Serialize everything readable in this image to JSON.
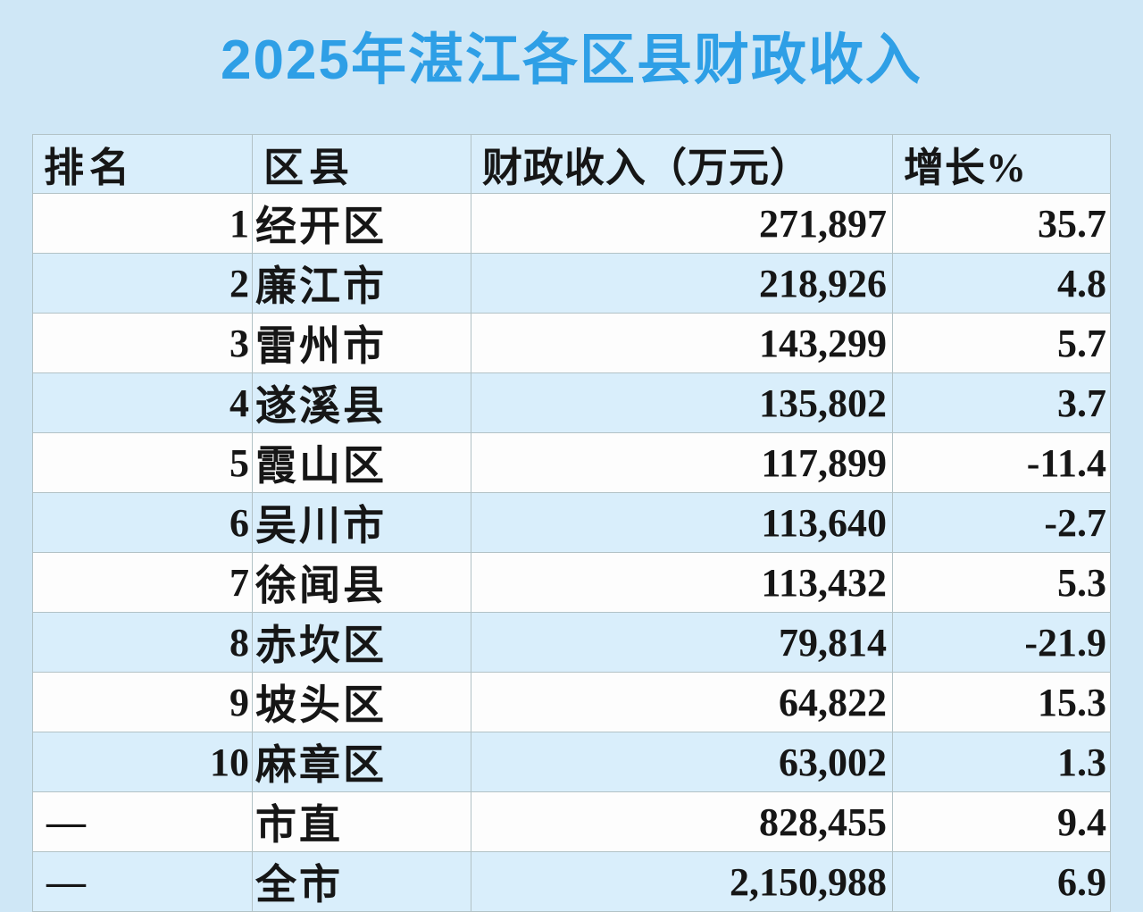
{
  "title": "2025年湛江各区县财政收入",
  "chart_data": {
    "type": "table",
    "title": "2025年湛江各区县财政收入",
    "columns": [
      "排名",
      "区县",
      "财政收入（万元）",
      "增长%"
    ],
    "rows": [
      {
        "rank": "1",
        "district": "经开区",
        "revenue": 271897,
        "revenue_label": "271,897",
        "growth": 35.7,
        "growth_label": "35.7"
      },
      {
        "rank": "2",
        "district": "廉江市",
        "revenue": 218926,
        "revenue_label": "218,926",
        "growth": 4.8,
        "growth_label": "4.8"
      },
      {
        "rank": "3",
        "district": "雷州市",
        "revenue": 143299,
        "revenue_label": "143,299",
        "growth": 5.7,
        "growth_label": "5.7"
      },
      {
        "rank": "4",
        "district": "遂溪县",
        "revenue": 135802,
        "revenue_label": "135,802",
        "growth": 3.7,
        "growth_label": "3.7"
      },
      {
        "rank": "5",
        "district": "霞山区",
        "revenue": 117899,
        "revenue_label": "117,899",
        "growth": -11.4,
        "growth_label": "-11.4"
      },
      {
        "rank": "6",
        "district": "吴川市",
        "revenue": 113640,
        "revenue_label": "113,640",
        "growth": -2.7,
        "growth_label": "-2.7"
      },
      {
        "rank": "7",
        "district": "徐闻县",
        "revenue": 113432,
        "revenue_label": "113,432",
        "growth": 5.3,
        "growth_label": "5.3"
      },
      {
        "rank": "8",
        "district": "赤坎区",
        "revenue": 79814,
        "revenue_label": "79,814",
        "growth": -21.9,
        "growth_label": "-21.9"
      },
      {
        "rank": "9",
        "district": "坡头区",
        "revenue": 64822,
        "revenue_label": "64,822",
        "growth": 15.3,
        "growth_label": "15.3"
      },
      {
        "rank": "10",
        "district": "麻章区",
        "revenue": 63002,
        "revenue_label": "63,002",
        "growth": 1.3,
        "growth_label": "1.3"
      },
      {
        "rank": "—",
        "district": "市直",
        "revenue": 828455,
        "revenue_label": "828,455",
        "growth": 9.4,
        "growth_label": "9.4"
      },
      {
        "rank": "—",
        "district": "全市",
        "revenue": 2150988,
        "revenue_label": "2,150,988",
        "growth": 6.9,
        "growth_label": "6.9"
      }
    ],
    "layout": {
      "zebra_striping": true,
      "header_position": "top"
    }
  },
  "colors": {
    "page_background": "#cfe7f6",
    "stripe_blue": "#d9eefb",
    "row_white": "#fdfdfd",
    "border_gray": "#b2c2c6",
    "title_blue": "#2e9fe6",
    "text_black": "#161616"
  }
}
